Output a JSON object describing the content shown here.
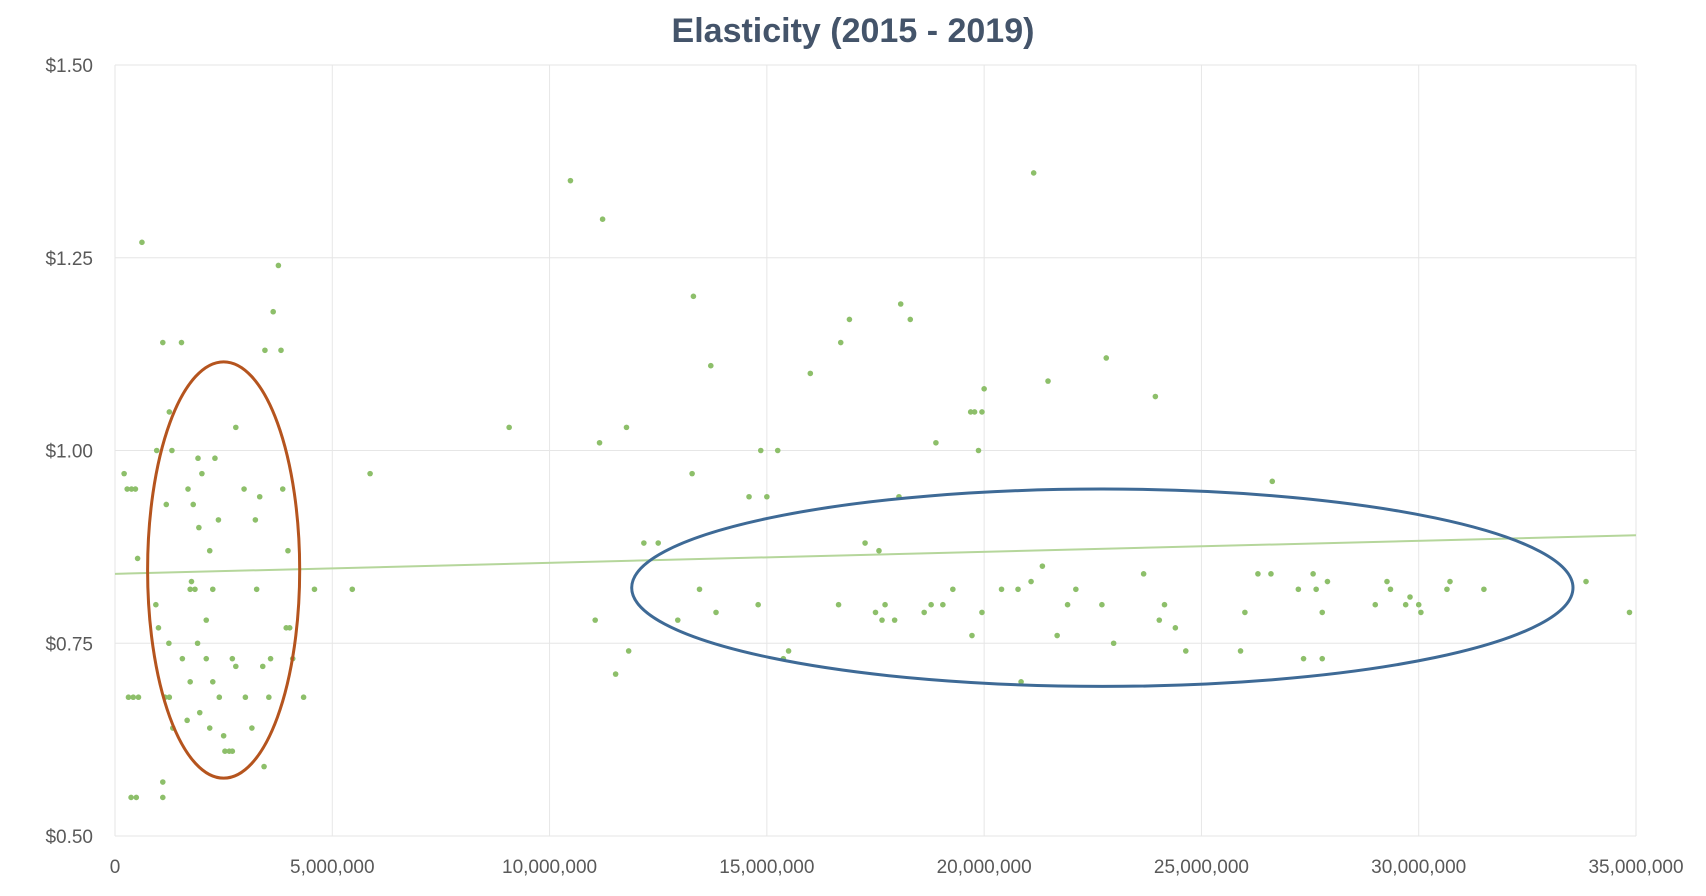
{
  "chart_data": {
    "type": "scatter",
    "title": "Elasticity (2015 -  2019)",
    "xlabel": "",
    "ylabel": "",
    "xlim": [
      0,
      35000000
    ],
    "ylim": [
      0.5,
      1.5
    ],
    "x_ticks": [
      0,
      5000000,
      10000000,
      15000000,
      20000000,
      25000000,
      30000000,
      35000000
    ],
    "x_tick_labels": [
      "0",
      "5,000,000",
      "10,000,000",
      "15,000,000",
      "20,000,000",
      "25,000,000",
      "30,000,000",
      "35,000,000"
    ],
    "y_ticks": [
      0.5,
      0.75,
      1.0,
      1.25,
      1.5
    ],
    "y_tick_labels": [
      "$0.50",
      "$0.75",
      "$1.00",
      "$1.25",
      "$1.50"
    ],
    "grid": true,
    "legend": "none",
    "colors": {
      "points": "#8dbf6a",
      "trendline": "#b5d69b",
      "grid": "#e6e6e6",
      "title": "#44546a",
      "ellipse_left": "#b5541e",
      "ellipse_right": "#3e6a96"
    },
    "series": [
      {
        "points": [
          [
            210000,
            0.97
          ],
          [
            280000,
            0.95
          ],
          [
            380000,
            0.95
          ],
          [
            470000,
            0.95
          ],
          [
            310000,
            0.68
          ],
          [
            420000,
            0.68
          ],
          [
            540000,
            0.68
          ],
          [
            370000,
            0.55
          ],
          [
            490000,
            0.55
          ],
          [
            520000,
            0.86
          ],
          [
            620000,
            1.27
          ],
          [
            960000,
            1.0
          ],
          [
            940000,
            0.8
          ],
          [
            1000000,
            0.77
          ],
          [
            1100000,
            1.14
          ],
          [
            1180000,
            0.93
          ],
          [
            1250000,
            1.05
          ],
          [
            1310000,
            1.0
          ],
          [
            1240000,
            0.75
          ],
          [
            1150000,
            0.68
          ],
          [
            1250000,
            0.68
          ],
          [
            1330000,
            0.64
          ],
          [
            1100000,
            0.57
          ],
          [
            1100000,
            0.55
          ],
          [
            1530000,
            1.14
          ],
          [
            1680000,
            0.95
          ],
          [
            1800000,
            0.93
          ],
          [
            1730000,
            0.82
          ],
          [
            1760000,
            0.83
          ],
          [
            1840000,
            0.82
          ],
          [
            1910000,
            0.99
          ],
          [
            1930000,
            0.9
          ],
          [
            2000000,
            0.97
          ],
          [
            1550000,
            0.73
          ],
          [
            1730000,
            0.7
          ],
          [
            1900000,
            0.75
          ],
          [
            1660000,
            0.65
          ],
          [
            1950000,
            0.66
          ],
          [
            2100000,
            0.78
          ],
          [
            2180000,
            0.87
          ],
          [
            2250000,
            0.82
          ],
          [
            2380000,
            0.91
          ],
          [
            2300000,
            0.99
          ],
          [
            2100000,
            0.73
          ],
          [
            2250000,
            0.7
          ],
          [
            2180000,
            0.64
          ],
          [
            2400000,
            0.68
          ],
          [
            2500000,
            0.63
          ],
          [
            2530000,
            0.61
          ],
          [
            2630000,
            0.61
          ],
          [
            2700000,
            0.61
          ],
          [
            2700000,
            0.73
          ],
          [
            2780000,
            0.72
          ],
          [
            2780000,
            1.03
          ],
          [
            2970000,
            0.95
          ],
          [
            3000000,
            0.68
          ],
          [
            3150000,
            0.64
          ],
          [
            3230000,
            0.91
          ],
          [
            3260000,
            0.82
          ],
          [
            3330000,
            0.94
          ],
          [
            3400000,
            0.72
          ],
          [
            3450000,
            1.13
          ],
          [
            3580000,
            0.73
          ],
          [
            3640000,
            1.18
          ],
          [
            3760000,
            1.24
          ],
          [
            3820000,
            1.13
          ],
          [
            3860000,
            0.95
          ],
          [
            3940000,
            0.77
          ],
          [
            3980000,
            0.87
          ],
          [
            4020000,
            0.77
          ],
          [
            4090000,
            0.73
          ],
          [
            4340000,
            0.68
          ],
          [
            4590000,
            0.82
          ],
          [
            3430000,
            0.59
          ],
          [
            3540000,
            0.68
          ],
          [
            5460000,
            0.82
          ],
          [
            5870000,
            0.97
          ],
          [
            9070000,
            1.03
          ],
          [
            10480000,
            1.35
          ],
          [
            11050000,
            0.78
          ],
          [
            11150000,
            1.01
          ],
          [
            11220000,
            1.3
          ],
          [
            11520000,
            0.71
          ],
          [
            11770000,
            1.03
          ],
          [
            11820000,
            0.74
          ],
          [
            12170000,
            0.88
          ],
          [
            12500000,
            0.88
          ],
          [
            12950000,
            0.78
          ],
          [
            13310000,
            1.2
          ],
          [
            13280000,
            0.97
          ],
          [
            13450000,
            0.82
          ],
          [
            13710000,
            1.11
          ],
          [
            13830000,
            0.79
          ],
          [
            14590000,
            0.94
          ],
          [
            14800000,
            0.8
          ],
          [
            14860000,
            1.0
          ],
          [
            15000000,
            0.94
          ],
          [
            15250000,
            1.0
          ],
          [
            15380000,
            0.73
          ],
          [
            15500000,
            0.74
          ],
          [
            16000000,
            1.1
          ],
          [
            16650000,
            0.8
          ],
          [
            16700000,
            1.14
          ],
          [
            16900000,
            1.17
          ],
          [
            17260000,
            0.88
          ],
          [
            17500000,
            0.79
          ],
          [
            17580000,
            0.87
          ],
          [
            17650000,
            0.78
          ],
          [
            17720000,
            0.8
          ],
          [
            17940000,
            0.78
          ],
          [
            18040000,
            0.94
          ],
          [
            18080000,
            1.19
          ],
          [
            18300000,
            1.17
          ],
          [
            18620000,
            0.79
          ],
          [
            18780000,
            0.8
          ],
          [
            18890000,
            1.01
          ],
          [
            19050000,
            0.8
          ],
          [
            19280000,
            0.82
          ],
          [
            19690000,
            1.05
          ],
          [
            19780000,
            1.05
          ],
          [
            19950000,
            1.05
          ],
          [
            19720000,
            0.76
          ],
          [
            19870000,
            1.0
          ],
          [
            20000000,
            1.08
          ],
          [
            19950000,
            0.79
          ],
          [
            20400000,
            0.82
          ],
          [
            20850000,
            0.7
          ],
          [
            20780000,
            0.82
          ],
          [
            21080000,
            0.83
          ],
          [
            21140000,
            1.36
          ],
          [
            21340000,
            0.85
          ],
          [
            21470000,
            1.09
          ],
          [
            21680000,
            0.76
          ],
          [
            21920000,
            0.8
          ],
          [
            22110000,
            0.82
          ],
          [
            22710000,
            0.8
          ],
          [
            22810000,
            1.12
          ],
          [
            22980000,
            0.75
          ],
          [
            23670000,
            0.84
          ],
          [
            23940000,
            1.07
          ],
          [
            24030000,
            0.78
          ],
          [
            24150000,
            0.8
          ],
          [
            24400000,
            0.77
          ],
          [
            24640000,
            0.74
          ],
          [
            25900000,
            0.74
          ],
          [
            26000000,
            0.79
          ],
          [
            26300000,
            0.84
          ],
          [
            26600000,
            0.84
          ],
          [
            26630000,
            0.96
          ],
          [
            27230000,
            0.82
          ],
          [
            27350000,
            0.73
          ],
          [
            27570000,
            0.84
          ],
          [
            27640000,
            0.82
          ],
          [
            27780000,
            0.79
          ],
          [
            27780000,
            0.73
          ],
          [
            27900000,
            0.83
          ],
          [
            29000000,
            0.8
          ],
          [
            29270000,
            0.83
          ],
          [
            29350000,
            0.82
          ],
          [
            29700000,
            0.8
          ],
          [
            29800000,
            0.81
          ],
          [
            30000000,
            0.8
          ],
          [
            30050000,
            0.79
          ],
          [
            30650000,
            0.82
          ],
          [
            30720000,
            0.83
          ],
          [
            31500000,
            0.82
          ],
          [
            33850000,
            0.83
          ],
          [
            34850000,
            0.79
          ]
        ]
      }
    ],
    "trendline": {
      "type": "linear",
      "from": [
        0,
        0.84
      ],
      "to": [
        35000000,
        0.89
      ]
    },
    "annotations": [
      {
        "type": "ellipse",
        "color": "#b5541e",
        "center": [
          2500000,
          0.845
        ],
        "x_radius": 1750000,
        "y_radius": 0.27
      },
      {
        "type": "ellipse",
        "color": "#3e6a96",
        "center": [
          22720000,
          0.822
        ],
        "x_radius": 10830000,
        "y_radius": 0.128
      }
    ]
  }
}
